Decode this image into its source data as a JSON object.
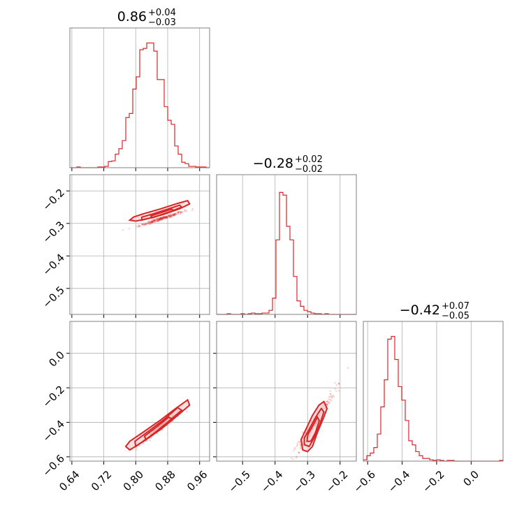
{
  "chart_data": {
    "type": "corner",
    "colors": {
      "series": "#d62728",
      "fill": "#f4c9c9",
      "grid": "#b0b0b0",
      "frame": "#808080"
    },
    "grid": true,
    "parameters": [
      {
        "title_value": "0.86",
        "title_plus": "+0.04",
        "title_minus": "−0.03",
        "range": [
          0.635,
          0.985
        ],
        "ticks": [
          0.64,
          0.72,
          0.8,
          0.88,
          0.96
        ],
        "tick_labels": [
          "0.64",
          "0.72",
          "0.80",
          "0.88",
          "0.96"
        ],
        "hist": {
          "start": 0.635,
          "width": 0.00875,
          "counts": [
            0,
            0,
            0.005,
            0,
            0,
            0,
            0,
            0,
            0.005,
            0.005,
            0.01,
            0.045,
            0.05,
            0.1,
            0.14,
            0.2,
            0.37,
            0.4,
            0.58,
            0.67,
            0.87,
            0.88,
            0.92,
            0.92,
            0.86,
            0.65,
            0.65,
            0.45,
            0.35,
            0.32,
            0.16,
            0.1,
            0.04,
            0.03,
            0.01,
            0.01,
            0.005,
            0.005,
            0.005,
            0
          ]
        }
      },
      {
        "title_value": "−0.28",
        "title_plus": "+0.02",
        "title_minus": "−0.02",
        "range": [
          -0.58,
          -0.15
        ],
        "ticks": [
          -0.5,
          -0.4,
          -0.3,
          -0.2
        ],
        "tick_labels": [
          "−0.5",
          "−0.4",
          "−0.3",
          "−0.2"
        ],
        "hist": {
          "start": -0.58,
          "width": 0.01075,
          "counts": [
            0,
            0,
            0,
            0.005,
            0,
            0,
            0,
            0.005,
            0,
            0.005,
            0.01,
            0.005,
            0.005,
            0.01,
            0.01,
            0.03,
            0.12,
            0.55,
            0.9,
            0.88,
            0.65,
            0.55,
            0.28,
            0.1,
            0.06,
            0.03,
            0.02,
            0.01,
            0.005,
            0.005,
            0,
            0.005,
            0,
            0,
            0,
            0,
            0,
            0,
            0,
            0
          ]
        }
      },
      {
        "title_value": "−0.42",
        "title_plus": "+0.07",
        "title_minus": "−0.05",
        "range": [
          -0.625,
          0.185
        ],
        "ticks": [
          -0.6,
          -0.4,
          -0.2,
          0.0
        ],
        "tick_labels": [
          "−0.6",
          "−0.4",
          "−0.2",
          "0.0"
        ],
        "hist": {
          "start": -0.625,
          "width": 0.02025,
          "counts": [
            0.01,
            0.04,
            0.06,
            0.1,
            0.2,
            0.4,
            0.6,
            0.9,
            0.92,
            0.75,
            0.55,
            0.45,
            0.3,
            0.15,
            0.12,
            0.07,
            0.04,
            0.02,
            0.02,
            0.01,
            0.005,
            0.01,
            0.005,
            0,
            0.005,
            0.005,
            0,
            0,
            0,
            0,
            0,
            0,
            0,
            0,
            0,
            0,
            0,
            0,
            0,
            0.005
          ]
        }
      }
    ],
    "pairs": [
      {
        "x_param": 0,
        "y_param": 1,
        "y_ticks": [
          -0.2,
          -0.3,
          -0.4,
          -0.5
        ],
        "y_tick_labels": [
          "−0.2",
          "−0.3",
          "−0.4",
          "−0.5"
        ],
        "center": [
          0.865,
          -0.285
        ],
        "contours": [
          [
            [
              0.8,
              -0.293
            ],
            [
              0.83,
              -0.285
            ],
            [
              0.87,
              -0.272
            ],
            [
              0.91,
              -0.255
            ],
            [
              0.935,
              -0.24
            ],
            [
              0.93,
              -0.23
            ],
            [
              0.9,
              -0.24
            ],
            [
              0.86,
              -0.256
            ],
            [
              0.82,
              -0.27
            ],
            [
              0.795,
              -0.28
            ],
            [
              0.785,
              -0.29
            ]
          ],
          [
            [
              0.815,
              -0.29
            ],
            [
              0.85,
              -0.279
            ],
            [
              0.89,
              -0.262
            ],
            [
              0.915,
              -0.25
            ],
            [
              0.91,
              -0.244
            ],
            [
              0.88,
              -0.256
            ],
            [
              0.845,
              -0.27
            ],
            [
              0.815,
              -0.281
            ]
          ],
          [
            [
              0.84,
              -0.283
            ],
            [
              0.875,
              -0.27
            ],
            [
              0.895,
              -0.26
            ],
            [
              0.89,
              -0.256
            ],
            [
              0.865,
              -0.266
            ],
            [
              0.838,
              -0.277
            ]
          ]
        ]
      },
      {
        "x_param": 0,
        "y_param": 2,
        "y_ticks": [
          0.0,
          -0.2,
          -0.4,
          -0.6
        ],
        "y_tick_labels": [
          "0.0",
          "−0.2",
          "−0.4",
          "−0.6"
        ],
        "center": [
          0.865,
          -0.42
        ],
        "contours": [
          [
            [
              0.785,
              -0.56
            ],
            [
              0.82,
              -0.51
            ],
            [
              0.86,
              -0.445
            ],
            [
              0.9,
              -0.37
            ],
            [
              0.935,
              -0.3
            ],
            [
              0.93,
              -0.27
            ],
            [
              0.9,
              -0.32
            ],
            [
              0.86,
              -0.39
            ],
            [
              0.82,
              -0.455
            ],
            [
              0.785,
              -0.51
            ],
            [
              0.775,
              -0.54
            ]
          ],
          [
            [
              0.8,
              -0.54
            ],
            [
              0.84,
              -0.475
            ],
            [
              0.88,
              -0.4
            ],
            [
              0.915,
              -0.33
            ],
            [
              0.905,
              -0.315
            ],
            [
              0.87,
              -0.385
            ],
            [
              0.83,
              -0.455
            ],
            [
              0.798,
              -0.51
            ]
          ],
          [
            [
              0.825,
              -0.5
            ],
            [
              0.86,
              -0.44
            ],
            [
              0.89,
              -0.38
            ],
            [
              0.883,
              -0.37
            ],
            [
              0.853,
              -0.425
            ],
            [
              0.822,
              -0.48
            ]
          ]
        ]
      },
      {
        "x_param": 1,
        "y_param": 2,
        "y_ticks": [
          0.0,
          -0.2,
          -0.4,
          -0.6
        ],
        "y_tick_labels": [],
        "center": [
          -0.285,
          -0.42
        ],
        "contours": [
          [
            [
              -0.315,
              -0.56
            ],
            [
              -0.3,
              -0.57
            ],
            [
              -0.285,
              -0.54
            ],
            [
              -0.27,
              -0.46
            ],
            [
              -0.25,
              -0.37
            ],
            [
              -0.24,
              -0.32
            ],
            [
              -0.25,
              -0.28
            ],
            [
              -0.265,
              -0.3
            ],
            [
              -0.285,
              -0.36
            ],
            [
              -0.305,
              -0.44
            ],
            [
              -0.32,
              -0.5
            ]
          ],
          [
            [
              -0.31,
              -0.53
            ],
            [
              -0.295,
              -0.54
            ],
            [
              -0.28,
              -0.49
            ],
            [
              -0.262,
              -0.41
            ],
            [
              -0.25,
              -0.34
            ],
            [
              -0.258,
              -0.32
            ],
            [
              -0.275,
              -0.37
            ],
            [
              -0.295,
              -0.44
            ],
            [
              -0.31,
              -0.49
            ]
          ],
          [
            [
              -0.302,
              -0.51
            ],
            [
              -0.29,
              -0.51
            ],
            [
              -0.276,
              -0.46
            ],
            [
              -0.264,
              -0.39
            ],
            [
              -0.27,
              -0.37
            ],
            [
              -0.284,
              -0.42
            ],
            [
              -0.299,
              -0.47
            ]
          ]
        ]
      }
    ]
  }
}
